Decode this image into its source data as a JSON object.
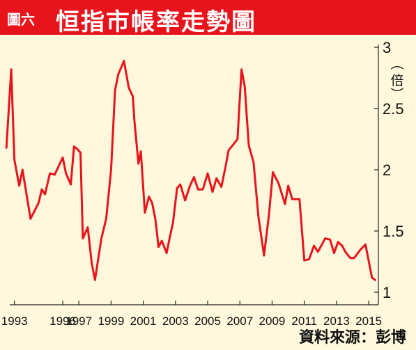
{
  "header": {
    "figure_label": "圖六",
    "title": "恒指市帳率走勢圖"
  },
  "source": "資料來源：彭博",
  "colors": {
    "header_bg": "#e8141c",
    "plot_bg": "#fff8dc",
    "line": "#e8141c"
  },
  "chart_data": {
    "type": "line",
    "ylabel": "倍",
    "ylim": [
      1,
      3
    ],
    "xlim": [
      1992.45,
      2015.6
    ],
    "yticks": [
      {
        "value": 1,
        "label": "1"
      },
      {
        "value": 1.5,
        "label": "1.5"
      },
      {
        "value": 2,
        "label": "2"
      },
      {
        "value": 2.5,
        "label": "2.5"
      },
      {
        "value": 3,
        "label": "3"
      }
    ],
    "xticks": [
      {
        "value": 1993,
        "label": "1993"
      },
      {
        "value": 1996,
        "label": "1996"
      },
      {
        "value": 1997,
        "label": "1997"
      },
      {
        "value": 1999,
        "label": "1999"
      },
      {
        "value": 2001,
        "label": "2001"
      },
      {
        "value": 2003,
        "label": "2003"
      },
      {
        "value": 2005,
        "label": "2005"
      },
      {
        "value": 2007,
        "label": "2007"
      },
      {
        "value": 2009,
        "label": "2009"
      },
      {
        "value": 2011,
        "label": "2011"
      },
      {
        "value": 2013,
        "label": "2013"
      },
      {
        "value": 2015,
        "label": "2015"
      }
    ],
    "x": [
      1992.5,
      1992.8,
      1993.0,
      1993.3,
      1993.5,
      1994.0,
      1994.5,
      1994.7,
      1994.9,
      1995.2,
      1995.5,
      1996.0,
      1996.2,
      1996.5,
      1996.7,
      1996.9,
      1997.1,
      1997.25,
      1997.55,
      1997.8,
      1998.0,
      1998.4,
      1998.7,
      1999.0,
      1999.25,
      1999.45,
      1999.8,
      2000.1,
      2000.35,
      2000.45,
      2000.7,
      2000.85,
      2001.1,
      2001.35,
      2001.55,
      2001.75,
      2001.95,
      2002.15,
      2002.45,
      2002.65,
      2002.85,
      2003.1,
      2003.3,
      2003.6,
      2003.9,
      2004.15,
      2004.4,
      2004.7,
      2005.0,
      2005.3,
      2005.55,
      2005.85,
      2006.1,
      2006.3,
      2006.55,
      2006.85,
      2007.1,
      2007.3,
      2007.55,
      2007.85,
      2008.15,
      2008.5,
      2008.8,
      2009.05,
      2009.4,
      2009.8,
      2010.0,
      2010.25,
      2010.45,
      2010.7,
      2011.0,
      2011.3,
      2011.6,
      2011.85,
      2012.3,
      2012.6,
      2012.85,
      2013.1,
      2013.35,
      2013.55,
      2013.85,
      2014.1,
      2014.5,
      2014.8,
      2015.2,
      2015.4
    ],
    "series": [
      {
        "values": [
          2.18,
          2.82,
          2.08,
          1.87,
          2.0,
          1.6,
          1.73,
          1.84,
          1.8,
          1.97,
          1.96,
          2.1,
          1.97,
          1.88,
          2.19,
          2.17,
          2.14,
          1.44,
          1.53,
          1.24,
          1.1,
          1.44,
          1.6,
          2.0,
          2.65,
          2.78,
          2.89,
          2.67,
          2.6,
          2.4,
          2.05,
          2.15,
          1.65,
          1.78,
          1.73,
          1.6,
          1.37,
          1.42,
          1.32,
          1.45,
          1.57,
          1.85,
          1.88,
          1.75,
          1.87,
          1.94,
          1.84,
          1.84,
          1.97,
          1.82,
          1.93,
          1.86,
          2.02,
          2.16,
          2.2,
          2.25,
          2.82,
          2.68,
          2.2,
          2.06,
          1.62,
          1.3,
          1.63,
          1.98,
          1.89,
          1.72,
          1.87,
          1.76,
          1.76,
          1.76,
          1.26,
          1.27,
          1.38,
          1.33,
          1.44,
          1.43,
          1.32,
          1.41,
          1.38,
          1.33,
          1.28,
          1.28,
          1.35,
          1.39,
          1.12,
          1.1
        ]
      }
    ]
  }
}
